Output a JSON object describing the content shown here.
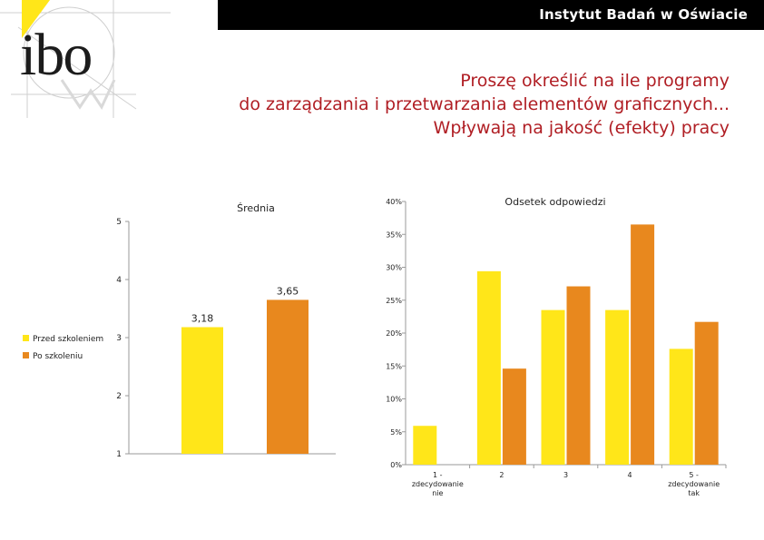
{
  "header": {
    "institute": "Instytut Badań w Oświacie",
    "logo_text": "ibo",
    "title_lines": [
      "Proszę określić na ile programy",
      "do zarządzania i przetwarzania elementów graficznych...",
      "Wpływają na jakość (efekty) pracy"
    ]
  },
  "colors": {
    "series_before": "#ffe619",
    "series_after": "#e8881e",
    "title": "#b01e24",
    "topbar": "#000000"
  },
  "legend": [
    "Przed szkoleniem",
    "Po szkoleniu"
  ],
  "chart_data": [
    {
      "type": "bar",
      "title": "Średnia",
      "ylim": [
        1,
        5
      ],
      "yticks": [
        "1",
        "2",
        "3",
        "4",
        "5"
      ],
      "grid": false,
      "series": [
        {
          "name": "Przed szkoleniem",
          "values": [
            3.18
          ],
          "label": "3,18"
        },
        {
          "name": "Po szkoleniu",
          "values": [
            3.65
          ],
          "label": "3,65"
        }
      ]
    },
    {
      "type": "bar",
      "title": "Odsetek odpowiedzi",
      "categories": [
        "1 - zdecydowanie nie",
        "2",
        "3",
        "4",
        "5 - zdecydowanie tak"
      ],
      "category_lines": [
        [
          "1 -",
          "zdecydowanie",
          "nie"
        ],
        [
          "2"
        ],
        [
          "3"
        ],
        [
          "4"
        ],
        [
          "5 -",
          "zdecydowanie",
          "tak"
        ]
      ],
      "ylim": [
        0,
        40
      ],
      "yticks": [
        "0%",
        "5%",
        "10%",
        "15%",
        "20%",
        "25%",
        "30%",
        "35%",
        "40%"
      ],
      "grid": false,
      "series": [
        {
          "name": "Przed szkoleniem",
          "values": [
            5.9,
            29.4,
            23.5,
            23.5,
            17.6
          ]
        },
        {
          "name": "Po szkoleniu",
          "values": [
            0.0,
            14.6,
            27.1,
            36.5,
            21.7
          ]
        }
      ]
    }
  ]
}
